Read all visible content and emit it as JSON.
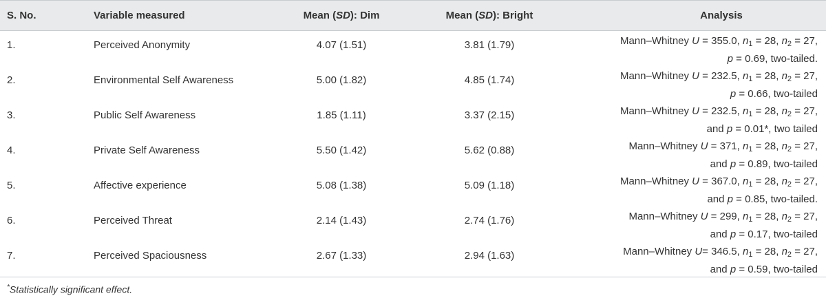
{
  "table": {
    "headers": {
      "sno": "S. No.",
      "variable": "Variable measured",
      "mean_dim_prefix": "Mean (",
      "mean_dim_sd": "SD",
      "mean_dim_suffix": "): Dim",
      "mean_bright_prefix": "Mean (",
      "mean_bright_sd": "SD",
      "mean_bright_suffix": "): Bright",
      "analysis": "Analysis"
    },
    "rows": [
      {
        "sno": "1.",
        "variable": "Perceived Anonymity",
        "dim": "4.07 (1.51)",
        "bright": "3.81 (1.79)",
        "a1_pre": "Mann–Whitney ",
        "a1_U": "U",
        "a1_u_val": " = 355.0, ",
        "a1_n1": "n",
        "a1_n1_sub": "1",
        "a1_n1_val": " = 28, ",
        "a1_n2": "n",
        "a1_n2_sub": "2",
        "a1_n2_val": " = 27,",
        "a2_pre": "",
        "a2_p": "p",
        "a2_p_val": " = 0.69, two-tailed."
      },
      {
        "sno": "2.",
        "variable": "Environmental Self Awareness",
        "dim": "5.00 (1.82)",
        "bright": "4.85 (1.74)",
        "a1_pre": "Mann–Whitney ",
        "a1_U": "U",
        "a1_u_val": " = 232.5, ",
        "a1_n1": "n",
        "a1_n1_sub": "1",
        "a1_n1_val": " = 28, ",
        "a1_n2": "n",
        "a1_n2_sub": "2",
        "a1_n2_val": " = 27,",
        "a2_pre": "",
        "a2_p": "p",
        "a2_p_val": " = 0.66, two-tailed"
      },
      {
        "sno": "3.",
        "variable": "Public Self Awareness",
        "dim": "1.85 (1.11)",
        "bright": "3.37 (2.15)",
        "a1_pre": "Mann–Whitney ",
        "a1_U": "U",
        "a1_u_val": " = 232.5, ",
        "a1_n1": "n",
        "a1_n1_sub": "1",
        "a1_n1_val": " = 28, ",
        "a1_n2": "n",
        "a1_n2_sub": "2",
        "a1_n2_val": " = 27,",
        "a2_pre": "and ",
        "a2_p": "p",
        "a2_p_val": " = 0.01*, two tailed"
      },
      {
        "sno": "4.",
        "variable": "Private Self Awareness",
        "dim": "5.50 (1.42)",
        "bright": "5.62 (0.88)",
        "a1_pre": "Mann–Whitney ",
        "a1_U": "U",
        "a1_u_val": " = 371, ",
        "a1_n1": "n",
        "a1_n1_sub": "1",
        "a1_n1_val": " = 28, ",
        "a1_n2": "n",
        "a1_n2_sub": "2",
        "a1_n2_val": " = 27,",
        "a2_pre": "and ",
        "a2_p": "p",
        "a2_p_val": " = 0.89, two-tailed"
      },
      {
        "sno": "5.",
        "variable": "Affective experience",
        "dim": "5.08 (1.38)",
        "bright": "5.09 (1.18)",
        "a1_pre": "Mann–Whitney ",
        "a1_U": "U",
        "a1_u_val": " = 367.0, ",
        "a1_n1": "n",
        "a1_n1_sub": "1",
        "a1_n1_val": " = 28, ",
        "a1_n2": "n",
        "a1_n2_sub": "2",
        "a1_n2_val": " = 27,",
        "a2_pre": "and ",
        "a2_p": "p",
        "a2_p_val": " = 0.85, two-tailed."
      },
      {
        "sno": "6.",
        "variable": "Perceived Threat",
        "dim": "2.14 (1.43)",
        "bright": "2.74 (1.76)",
        "a1_pre": "Mann–Whitney ",
        "a1_U": "U",
        "a1_u_val": " = 299, ",
        "a1_n1": "n",
        "a1_n1_sub": "1",
        "a1_n1_val": " = 28, ",
        "a1_n2": "n",
        "a1_n2_sub": "2",
        "a1_n2_val": " = 27,",
        "a2_pre": "and ",
        "a2_p": "p",
        "a2_p_val": " = 0.17, two-tailed"
      },
      {
        "sno": "7.",
        "variable": "Perceived Spaciousness",
        "dim": "2.67 (1.33)",
        "bright": "2.94 (1.63)",
        "a1_pre": "Mann–Whitney ",
        "a1_U": "U",
        "a1_u_val": "= 346.5, ",
        "a1_n1": "n",
        "a1_n1_sub": "1",
        "a1_n1_val": " = 28, ",
        "a1_n2": "n",
        "a1_n2_sub": "2",
        "a1_n2_val": " = 27,",
        "a2_pre": "and ",
        "a2_p": "p",
        "a2_p_val": " = 0.59, two-tailed"
      }
    ],
    "footnote_mark": "*",
    "footnote_text": "Statistically significant effect."
  },
  "colors": {
    "header_bg": "#e8eaeb",
    "rule": "#c9cccf",
    "text": "#333333"
  }
}
